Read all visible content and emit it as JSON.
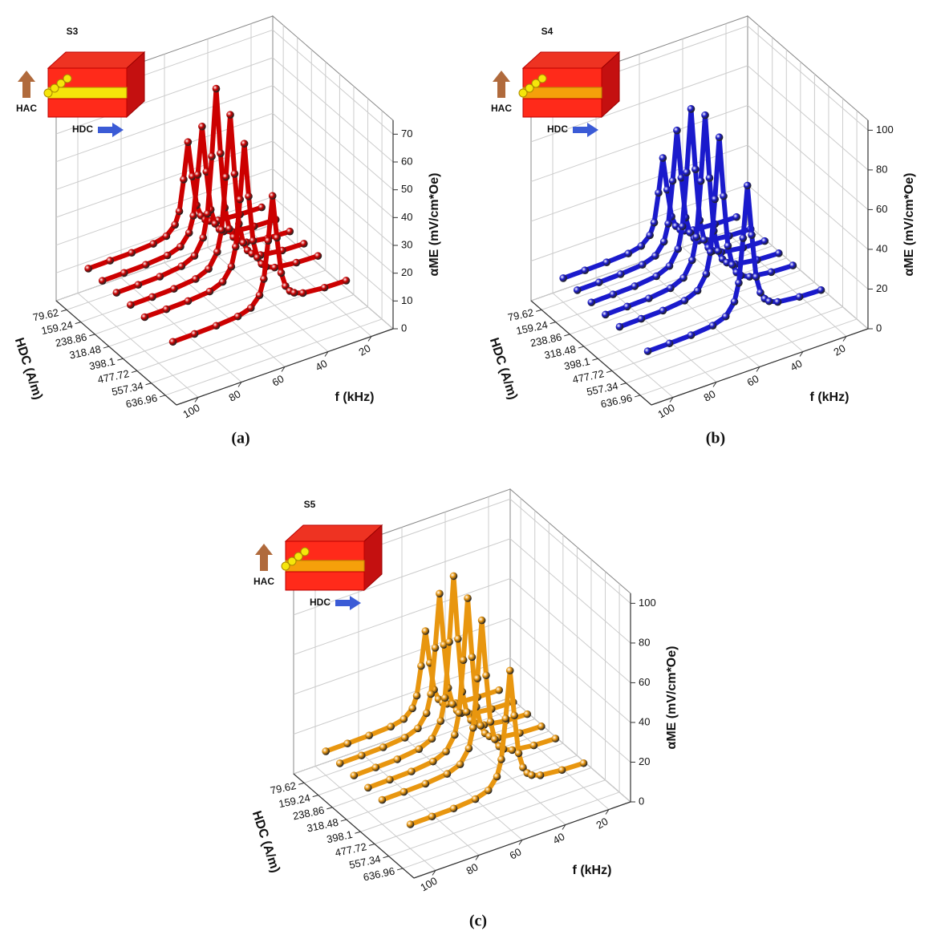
{
  "chart_data": [
    {
      "type": "scatter3d",
      "caption": "(a)",
      "sample": "S3",
      "inset_hac": "HAC",
      "inset_hdc": "HDC",
      "inset_layer_color": "#f5e60a",
      "color": "#cc0000",
      "x_label": "f (kHz)",
      "z_label": "HDC (A/m)",
      "y_label": "αME (mV/cm*Oe)",
      "xlim": [
        10,
        110
      ],
      "xticks": [
        20,
        40,
        60,
        80,
        100
      ],
      "zlim": [
        20,
        700
      ],
      "zticks": [
        79.62,
        159.24,
        238.86,
        318.48,
        398.1,
        477.72,
        557.34,
        636.96
      ],
      "ylim": [
        0,
        75
      ],
      "yticks": [
        0,
        10,
        20,
        30,
        40,
        50,
        60,
        70
      ],
      "x": [
        100,
        90,
        80,
        70,
        64,
        60,
        58,
        56,
        54,
        52,
        50,
        48,
        46,
        44,
        40,
        30,
        20
      ],
      "series": [
        {
          "z": 79.62,
          "values": [
            12.1,
            12.2,
            12.3,
            12.8,
            13.9,
            16.9,
            21.2,
            32.1,
            45,
            32.1,
            21.2,
            16.9,
            14.9,
            13.9,
            13.0,
            12.4,
            12.2
          ]
        },
        {
          "z": 159.24,
          "values": [
            12.1,
            12.2,
            12.4,
            13.0,
            14.5,
            18.4,
            24.0,
            38.2,
            55,
            38.2,
            24.0,
            18.4,
            15.8,
            14.5,
            13.3,
            12.5,
            12.2
          ]
        },
        {
          "z": 238.86,
          "values": [
            12.2,
            12.3,
            12.5,
            13.5,
            15.6,
            21.0,
            29.1,
            49.2,
            73,
            49.2,
            29.1,
            21.0,
            17.4,
            15.6,
            13.9,
            12.7,
            12.3
          ]
        },
        {
          "z": 318.48,
          "values": [
            12.2,
            12.3,
            12.5,
            13.3,
            15.3,
            20.3,
            27.7,
            46.2,
            68,
            46.2,
            27.7,
            20.3,
            17.0,
            15.3,
            13.7,
            12.6,
            12.3
          ]
        },
        {
          "z": 398.1,
          "values": [
            12.2,
            12.3,
            12.5,
            13.2,
            15.0,
            19.4,
            26.0,
            42.5,
            62,
            42.5,
            26.0,
            19.4,
            16.5,
            15.0,
            13.6,
            12.6,
            12.3
          ]
        },
        {
          "z": 557.34,
          "values": [
            12.1,
            12.2,
            12.4,
            13.0,
            14.4,
            17.9,
            23.2,
            36.4,
            52,
            36.4,
            23.2,
            17.9,
            15.6,
            14.4,
            13.2,
            12.4,
            12.2
          ]
        }
      ]
    },
    {
      "type": "scatter3d",
      "caption": "(b)",
      "sample": "S4",
      "inset_hac": "HAC",
      "inset_hdc": "HDC",
      "inset_layer_color": "#f5a00a",
      "color": "#1a1acc",
      "x_label": "f (kHz)",
      "z_label": "HDC (A/m)",
      "y_label": "αME (mV/cm*Oe)",
      "xlim": [
        10,
        110
      ],
      "xticks": [
        20,
        40,
        60,
        80,
        100
      ],
      "zlim": [
        20,
        700
      ],
      "zticks": [
        79.62,
        159.24,
        238.86,
        318.48,
        398.1,
        477.72,
        557.34,
        636.96
      ],
      "ylim": [
        0,
        105
      ],
      "yticks": [
        0,
        20,
        40,
        60,
        80,
        100
      ],
      "x": [
        100,
        90,
        80,
        70,
        64,
        60,
        58,
        56,
        54,
        52,
        50,
        48,
        46,
        44,
        40,
        30,
        20
      ],
      "series": [
        {
          "z": 79.62,
          "values": [
            12.1,
            12.2,
            12.4,
            13.0,
            14.5,
            18.4,
            24.0,
            38.2,
            55,
            38.2,
            24.0,
            18.4,
            15.8,
            14.5,
            13.3,
            12.5,
            12.2
          ]
        },
        {
          "z": 159.24,
          "values": [
            12.2,
            12.3,
            12.6,
            13.5,
            15.7,
            21.3,
            29.6,
            50.4,
            75,
            50.4,
            29.6,
            21.3,
            17.6,
            15.7,
            14.0,
            12.7,
            12.3
          ]
        },
        {
          "z": 238.86,
          "values": [
            12.2,
            12.4,
            12.7,
            13.9,
            16.7,
            23.8,
            34.4,
            60.8,
            92,
            60.8,
            34.4,
            23.8,
            19.1,
            16.7,
            14.5,
            12.9,
            12.4
          ]
        },
        {
          "z": 318.48,
          "values": [
            12.2,
            12.4,
            12.7,
            14.0,
            16.9,
            24.3,
            35.2,
            62.6,
            95,
            62.6,
            35.2,
            24.3,
            19.4,
            16.9,
            14.6,
            12.9,
            12.4
          ]
        },
        {
          "z": 398.1,
          "values": [
            12.2,
            12.4,
            12.7,
            13.9,
            16.6,
            23.5,
            33.8,
            59.6,
            90,
            59.6,
            33.8,
            23.5,
            18.9,
            16.6,
            14.4,
            12.9,
            12.4
          ]
        },
        {
          "z": 557.34,
          "values": [
            12.2,
            12.3,
            12.6,
            13.6,
            15.9,
            21.8,
            30.5,
            52.3,
            78,
            52.3,
            30.5,
            21.8,
            17.9,
            15.9,
            14.0,
            12.7,
            12.3
          ]
        }
      ]
    },
    {
      "type": "scatter3d",
      "caption": "(c)",
      "sample": "S5",
      "inset_hac": "HAC",
      "inset_hdc": "HDC",
      "inset_layer_color": "#f5a00a",
      "color": "#e8960f",
      "x_label": "f (kHz)",
      "z_label": "HDC (A/m)",
      "y_label": "αME (mV/cm*Oe)",
      "xlim": [
        10,
        110
      ],
      "xticks": [
        20,
        40,
        60,
        80,
        100
      ],
      "zlim": [
        20,
        700
      ],
      "zticks": [
        79.62,
        159.24,
        238.86,
        318.48,
        398.1,
        477.72,
        557.34,
        636.96
      ],
      "ylim": [
        0,
        105
      ],
      "yticks": [
        0,
        20,
        40,
        60,
        80,
        100
      ],
      "x": [
        100,
        90,
        80,
        70,
        64,
        60,
        58,
        56,
        54,
        52,
        50,
        48,
        46,
        44,
        40,
        30,
        20
      ],
      "series": [
        {
          "z": 79.62,
          "values": [
            12.1,
            12.2,
            12.4,
            13.0,
            14.5,
            18.4,
            24.0,
            38.2,
            55,
            38.2,
            24.0,
            18.4,
            15.8,
            14.5,
            13.3,
            12.5,
            12.2
          ]
        },
        {
          "z": 159.24,
          "values": [
            12.2,
            12.3,
            12.6,
            13.6,
            16.0,
            22.1,
            31.0,
            53.5,
            80,
            53.5,
            31.0,
            22.1,
            18.1,
            16.0,
            14.1,
            12.7,
            12.3
          ]
        },
        {
          "z": 238.86,
          "values": [
            12.2,
            12.4,
            12.7,
            14.0,
            16.9,
            24.3,
            35.2,
            62.6,
            95,
            62.6,
            35.2,
            24.3,
            19.4,
            16.9,
            14.6,
            12.9,
            12.4
          ]
        },
        {
          "z": 318.48,
          "values": [
            12.2,
            12.4,
            12.7,
            13.9,
            16.6,
            23.5,
            33.8,
            59.6,
            90,
            59.6,
            33.8,
            23.5,
            18.9,
            16.6,
            14.4,
            12.9,
            12.4
          ]
        },
        {
          "z": 398.1,
          "values": [
            12.2,
            12.4,
            12.7,
            13.8,
            16.3,
            22.8,
            32.4,
            56.5,
            85,
            56.5,
            32.4,
            22.8,
            18.5,
            16.3,
            14.3,
            12.8,
            12.4
          ]
        },
        {
          "z": 557.34,
          "values": [
            12.2,
            12.3,
            12.5,
            13.4,
            15.5,
            20.9,
            28.8,
            48.6,
            72,
            48.6,
            28.8,
            20.9,
            17.3,
            15.5,
            13.9,
            12.7,
            12.3
          ]
        }
      ]
    }
  ]
}
